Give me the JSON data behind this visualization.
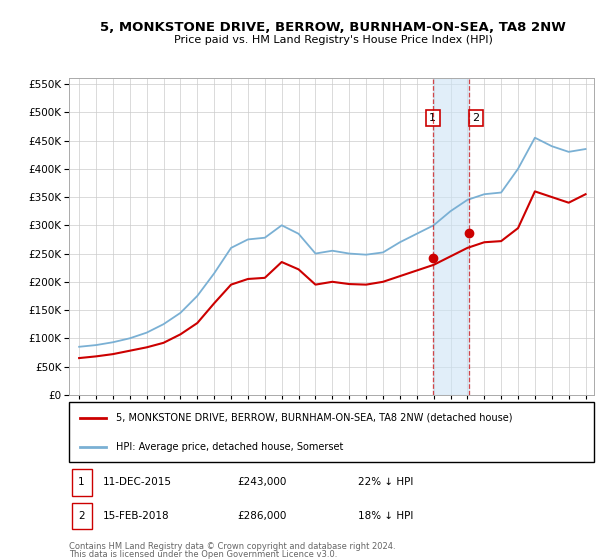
{
  "title": "5, MONKSTONE DRIVE, BERROW, BURNHAM-ON-SEA, TA8 2NW",
  "subtitle": "Price paid vs. HM Land Registry's House Price Index (HPI)",
  "ylim": [
    0,
    560000
  ],
  "yticks": [
    0,
    50000,
    100000,
    150000,
    200000,
    250000,
    300000,
    350000,
    400000,
    450000,
    500000,
    550000
  ],
  "red_line_color": "#cc0000",
  "blue_line_color": "#7ab0d4",
  "annotation1_date": "11-DEC-2015",
  "annotation1_price": "£243,000",
  "annotation1_pct": "22% ↓ HPI",
  "annotation2_date": "15-FEB-2018",
  "annotation2_price": "£286,000",
  "annotation2_pct": "18% ↓ HPI",
  "legend_line1": "5, MONKSTONE DRIVE, BERROW, BURNHAM-ON-SEA, TA8 2NW (detached house)",
  "legend_line2": "HPI: Average price, detached house, Somerset",
  "footer": "Contains HM Land Registry data © Crown copyright and database right 2024.\nThis data is licensed under the Open Government Licence v3.0.",
  "hpi_x": [
    1995,
    1996,
    1997,
    1998,
    1999,
    2000,
    2001,
    2002,
    2003,
    2004,
    2005,
    2006,
    2007,
    2008,
    2009,
    2010,
    2011,
    2012,
    2013,
    2014,
    2015,
    2016,
    2017,
    2018,
    2019,
    2020,
    2021,
    2022,
    2023,
    2024,
    2025
  ],
  "hpi_y": [
    85000,
    88000,
    93000,
    100000,
    110000,
    125000,
    145000,
    175000,
    215000,
    260000,
    275000,
    278000,
    300000,
    285000,
    250000,
    255000,
    250000,
    248000,
    252000,
    270000,
    285000,
    300000,
    325000,
    345000,
    355000,
    358000,
    400000,
    455000,
    440000,
    430000,
    435000
  ],
  "red_x": [
    1995,
    1996,
    1997,
    1998,
    1999,
    2000,
    2001,
    2002,
    2003,
    2004,
    2005,
    2006,
    2007,
    2008,
    2009,
    2010,
    2011,
    2012,
    2013,
    2014,
    2015,
    2016,
    2017,
    2018,
    2019,
    2020,
    2021,
    2022,
    2023,
    2024,
    2025
  ],
  "red_y": [
    65000,
    68000,
    72000,
    78000,
    84000,
    92000,
    107000,
    127000,
    162000,
    195000,
    205000,
    207000,
    235000,
    222000,
    195000,
    200000,
    196000,
    195000,
    200000,
    210000,
    220000,
    230000,
    245000,
    260000,
    270000,
    272000,
    295000,
    360000,
    350000,
    340000,
    355000
  ],
  "sale1_x": 2015.95,
  "sale1_y": 243000,
  "sale2_x": 2018.12,
  "sale2_y": 286000,
  "shade_x1": 2015.95,
  "shade_x2": 2018.12,
  "xlim": [
    1994.4,
    2025.5
  ]
}
